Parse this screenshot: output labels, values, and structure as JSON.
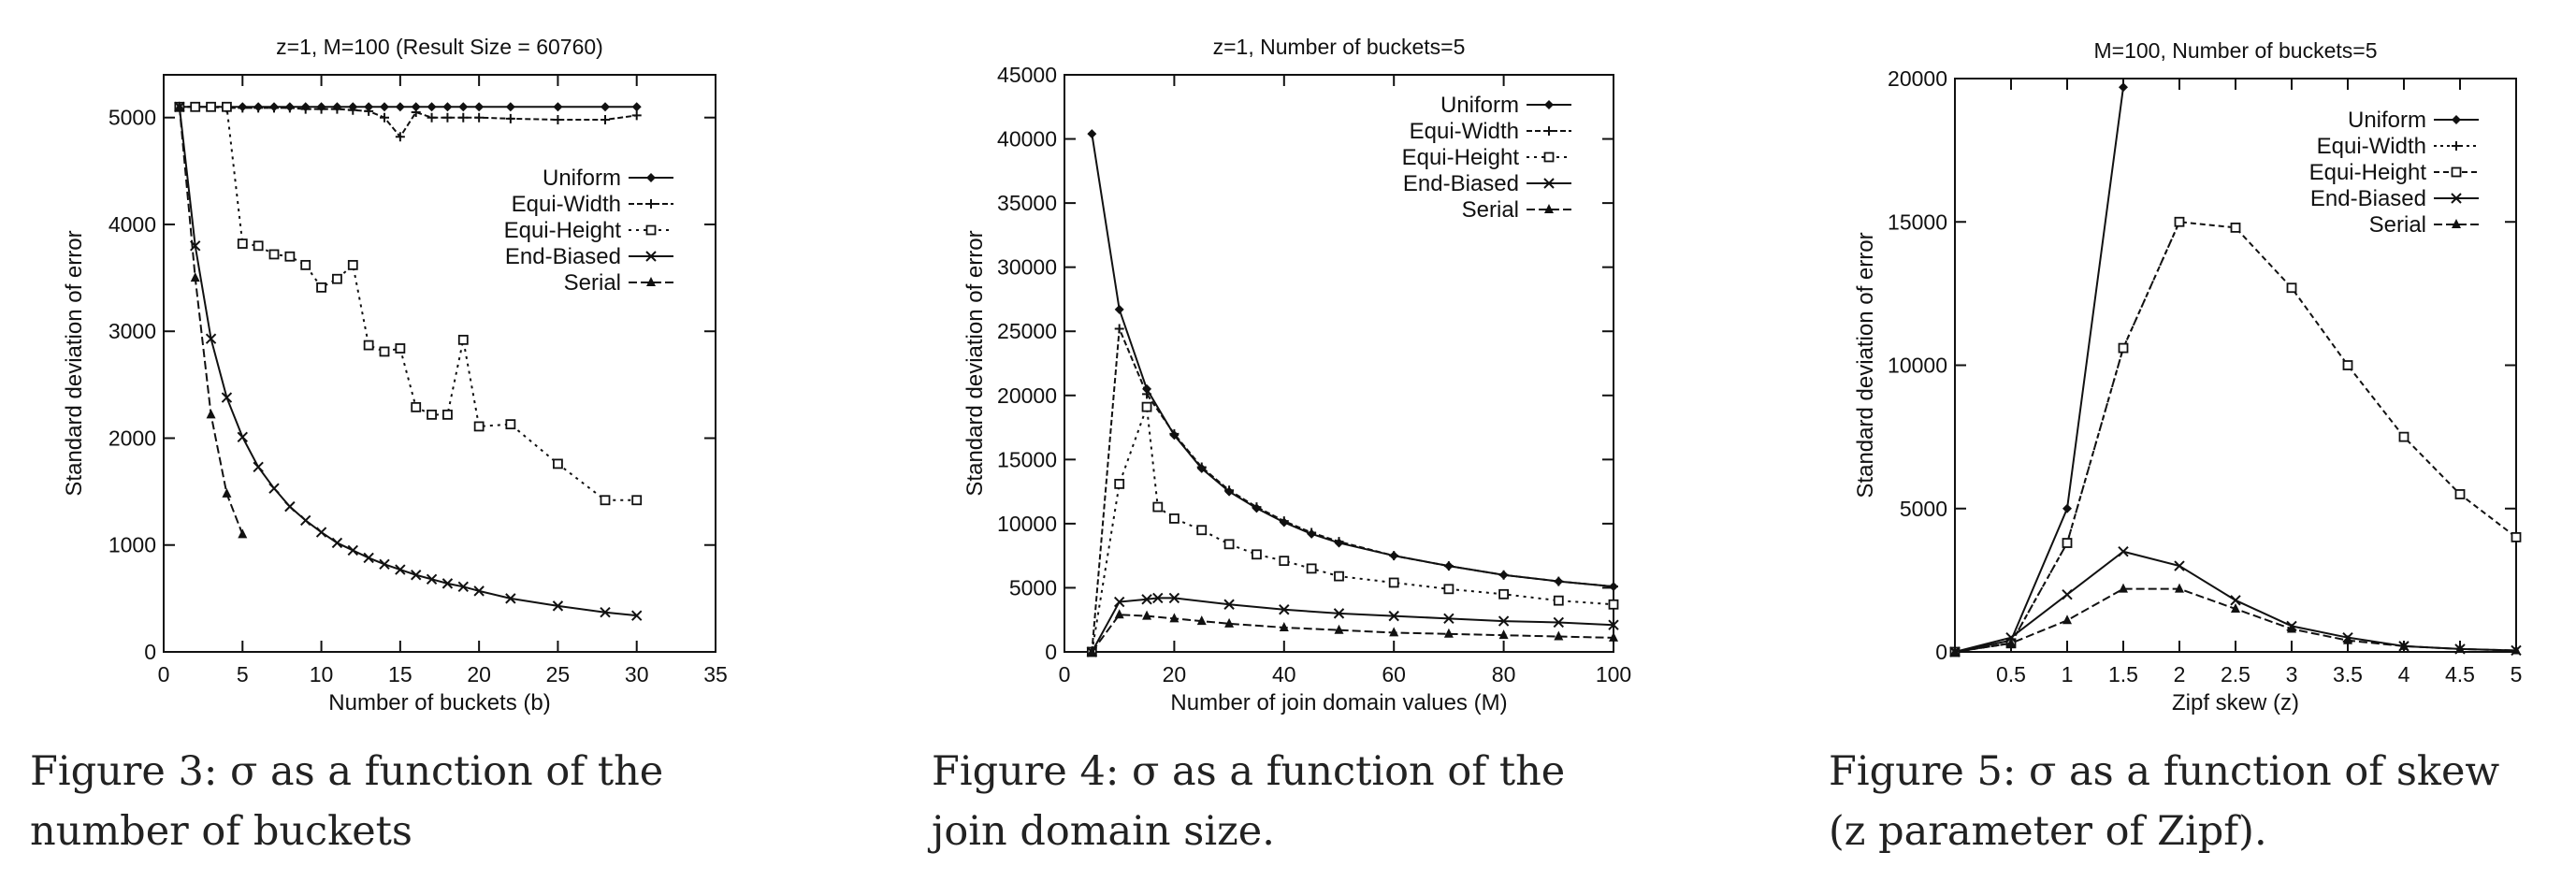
{
  "chart_data": [
    {
      "type": "line",
      "title": "z=1, M=100 (Result Size = 60760)",
      "xlabel": "Number of buckets (b)",
      "ylabel": "Standard deviation of error",
      "xlim": [
        0,
        35
      ],
      "ylim": [
        0,
        5400
      ],
      "xticks": [
        0,
        5,
        10,
        15,
        20,
        25,
        30,
        35
      ],
      "yticks": [
        0,
        1000,
        2000,
        3000,
        4000,
        5000
      ],
      "grid": false,
      "legend": "right",
      "series": [
        {
          "name": "Uniform",
          "marker": "diamond",
          "dash": "",
          "x": [
            1,
            2,
            3,
            4,
            5,
            6,
            7,
            8,
            9,
            10,
            11,
            12,
            13,
            14,
            15,
            16,
            17,
            18,
            19,
            20,
            22,
            25,
            28,
            30
          ],
          "y": [
            5100,
            5100,
            5100,
            5100,
            5100,
            5100,
            5100,
            5100,
            5100,
            5100,
            5100,
            5100,
            5100,
            5100,
            5100,
            5100,
            5100,
            5100,
            5100,
            5100,
            5100,
            5100,
            5100,
            5100
          ]
        },
        {
          "name": "Equi-Width",
          "marker": "plus",
          "dash": "6,3",
          "x": [
            1,
            2,
            3,
            4,
            5,
            6,
            7,
            8,
            9,
            10,
            11,
            12,
            13,
            14,
            15,
            16,
            17,
            18,
            19,
            20,
            22,
            25,
            28,
            30
          ],
          "y": [
            5100,
            5100,
            5100,
            5090,
            5090,
            5090,
            5090,
            5090,
            5080,
            5080,
            5080,
            5070,
            5060,
            5000,
            4820,
            5050,
            5000,
            5000,
            5000,
            5000,
            4990,
            4980,
            4980,
            5020
          ]
        },
        {
          "name": "Equi-Height",
          "marker": "square",
          "dash": "3,5",
          "x": [
            1,
            2,
            3,
            4,
            5,
            6,
            7,
            8,
            9,
            10,
            11,
            12,
            13,
            14,
            15,
            16,
            17,
            18,
            19,
            20,
            22,
            25,
            28,
            30
          ],
          "y": [
            5100,
            5100,
            5100,
            5100,
            3820,
            3800,
            3720,
            3700,
            3620,
            3410,
            3490,
            3620,
            2870,
            2810,
            2840,
            2290,
            2220,
            2220,
            2920,
            2110,
            2130,
            1760,
            1420,
            1420
          ]
        },
        {
          "name": "End-Biased",
          "marker": "cross",
          "dash": "",
          "x": [
            1,
            2,
            3,
            4,
            5,
            6,
            7,
            8,
            9,
            10,
            11,
            12,
            13,
            14,
            15,
            16,
            17,
            18,
            19,
            20,
            22,
            25,
            28,
            30
          ],
          "y": [
            5100,
            3800,
            2930,
            2380,
            2010,
            1730,
            1530,
            1360,
            1230,
            1120,
            1020,
            950,
            880,
            820,
            770,
            720,
            680,
            640,
            610,
            570,
            500,
            430,
            370,
            340
          ]
        },
        {
          "name": "Serial",
          "marker": "triangle",
          "dash": "9,4",
          "x": [
            1,
            2,
            3,
            4,
            5
          ],
          "y": [
            5100,
            3500,
            2220,
            1480,
            1100
          ]
        }
      ]
    },
    {
      "type": "line",
      "title": "z=1, Number of buckets=5",
      "xlabel": "Number of join domain values (M)",
      "ylabel": "Standard deviation of error",
      "xlim": [
        0,
        100
      ],
      "ylim": [
        0,
        45000
      ],
      "xticks": [
        0,
        20,
        40,
        60,
        80,
        100
      ],
      "yticks": [
        0,
        5000,
        10000,
        15000,
        20000,
        25000,
        30000,
        35000,
        40000,
        45000
      ],
      "grid": false,
      "legend": "top-right",
      "series": [
        {
          "name": "Uniform",
          "marker": "diamond",
          "dash": "",
          "x": [
            5,
            10,
            15,
            20,
            25,
            30,
            35,
            40,
            45,
            50,
            60,
            70,
            80,
            90,
            100
          ],
          "y": [
            40400,
            26700,
            20500,
            16900,
            14300,
            12500,
            11200,
            10100,
            9200,
            8500,
            7500,
            6700,
            6000,
            5500,
            5100
          ]
        },
        {
          "name": "Equi-Width",
          "marker": "plus",
          "dash": "6,3",
          "x": [
            5,
            10,
            15,
            20,
            25,
            30,
            35,
            40,
            45,
            50,
            60,
            70,
            80,
            90,
            100
          ],
          "y": [
            0,
            25200,
            20100,
            17000,
            14400,
            12600,
            11300,
            10200,
            9300,
            8600,
            7500,
            6700,
            6000,
            5500,
            5100
          ]
        },
        {
          "name": "Equi-Height",
          "marker": "square",
          "dash": "3,5",
          "x": [
            5,
            10,
            15,
            17,
            20,
            25,
            30,
            35,
            40,
            45,
            50,
            60,
            70,
            80,
            90,
            100
          ],
          "y": [
            0,
            13100,
            19100,
            11300,
            10400,
            9500,
            8400,
            7600,
            7100,
            6500,
            5900,
            5400,
            4900,
            4500,
            4000,
            3700
          ]
        },
        {
          "name": "End-Biased",
          "marker": "cross",
          "dash": "",
          "x": [
            5,
            10,
            15,
            17,
            20,
            30,
            40,
            50,
            60,
            70,
            80,
            90,
            100
          ],
          "y": [
            0,
            3900,
            4100,
            4200,
            4200,
            3700,
            3300,
            3000,
            2800,
            2600,
            2400,
            2300,
            2100
          ]
        },
        {
          "name": "Serial",
          "marker": "triangle",
          "dash": "9,4",
          "x": [
            5,
            10,
            15,
            20,
            25,
            30,
            40,
            50,
            60,
            70,
            80,
            90,
            100
          ],
          "y": [
            0,
            2900,
            2800,
            2600,
            2400,
            2200,
            1900,
            1700,
            1500,
            1400,
            1300,
            1200,
            1100
          ]
        }
      ]
    },
    {
      "type": "line",
      "title": "M=100, Number of buckets=5",
      "xlabel": "Zipf skew (z)",
      "ylabel": "Standard deviation of error",
      "xlim": [
        0,
        5
      ],
      "ylim": [
        0,
        20000
      ],
      "xticks": [
        0.5,
        1,
        1.5,
        2,
        2.5,
        3,
        3.5,
        4,
        4.5,
        5
      ],
      "yticks": [
        0,
        5000,
        10000,
        15000,
        20000
      ],
      "grid": false,
      "legend": "top-right",
      "series": [
        {
          "name": "Uniform",
          "marker": "diamond",
          "dash": "",
          "x": [
            0,
            0.5,
            1,
            1.5
          ],
          "y": [
            0,
            400,
            5000,
            19700
          ]
        },
        {
          "name": "Equi-Width",
          "marker": "plus",
          "dash": "3,4",
          "x": [
            0,
            0.5,
            1,
            1.5,
            2
          ],
          "y": [
            0,
            300,
            3800,
            10600,
            15000
          ]
        },
        {
          "name": "Equi-Height",
          "marker": "square",
          "dash": "6,4",
          "x": [
            0,
            0.5,
            1,
            1.5,
            2,
            2.5,
            3,
            3.5,
            4,
            4.5,
            5
          ],
          "y": [
            0,
            300,
            3800,
            10600,
            15000,
            14800,
            12700,
            10000,
            7500,
            5500,
            4000
          ]
        },
        {
          "name": "End-Biased",
          "marker": "cross",
          "dash": "",
          "x": [
            0,
            0.5,
            1,
            1.5,
            2,
            2.5,
            3,
            3.5,
            4,
            4.5,
            5
          ],
          "y": [
            0,
            500,
            2000,
            3500,
            3000,
            1800,
            900,
            500,
            200,
            100,
            50
          ]
        },
        {
          "name": "Serial",
          "marker": "triangle",
          "dash": "9,4",
          "x": [
            0,
            0.5,
            1,
            1.5,
            2,
            2.5,
            3,
            3.5,
            4,
            4.5,
            5
          ],
          "y": [
            0,
            300,
            1100,
            2200,
            2200,
            1500,
            800,
            400,
            200,
            100,
            50
          ]
        }
      ]
    }
  ],
  "captions": [
    {
      "text": "Figure 3:  σ as a function of the number of buckets",
      "line1": "Figure 3:  σ as a function of the",
      "line2": "number of buckets"
    },
    {
      "text": "Figure 4:  σ as a function of the join domain size.",
      "line1": "Figure 4:  σ as a function of the",
      "line2": "join domain size."
    },
    {
      "text": "Figure 5:  σ as a function of skew (z parameter of Zipf).",
      "line1": "Figure 5:  σ as a function of skew",
      "line2": "(z parameter of Zipf)."
    }
  ]
}
